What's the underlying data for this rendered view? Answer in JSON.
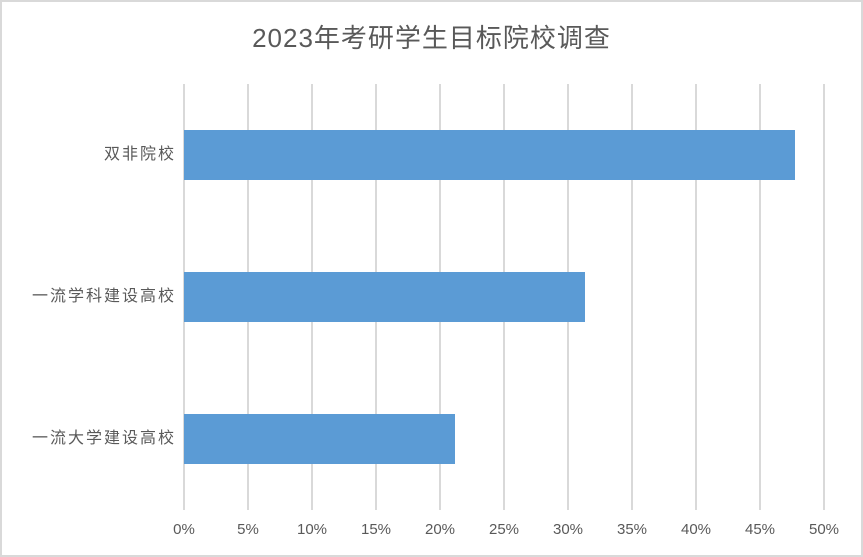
{
  "chart_data": {
    "type": "bar",
    "orientation": "horizontal",
    "title": "2023年考研学生目标院校调查",
    "categories": [
      "双非院校",
      "一流学科建设高校",
      "一流大学建设高校"
    ],
    "values": [
      47.7,
      31.3,
      21.2
    ],
    "value_unit": "%",
    "xlabel": "",
    "ylabel": "",
    "xlim": [
      0,
      50
    ],
    "x_tick_step": 5,
    "x_tick_labels": [
      "0%",
      "5%",
      "10%",
      "15%",
      "20%",
      "25%",
      "30%",
      "35%",
      "40%",
      "45%",
      "50%"
    ],
    "grid": "vertical-only",
    "legend": "none",
    "colors": {
      "bar": "#5b9bd5",
      "gridline": "#d9d9d9",
      "text": "#595959",
      "border": "#d9d9d9",
      "background": "#ffffff"
    }
  }
}
